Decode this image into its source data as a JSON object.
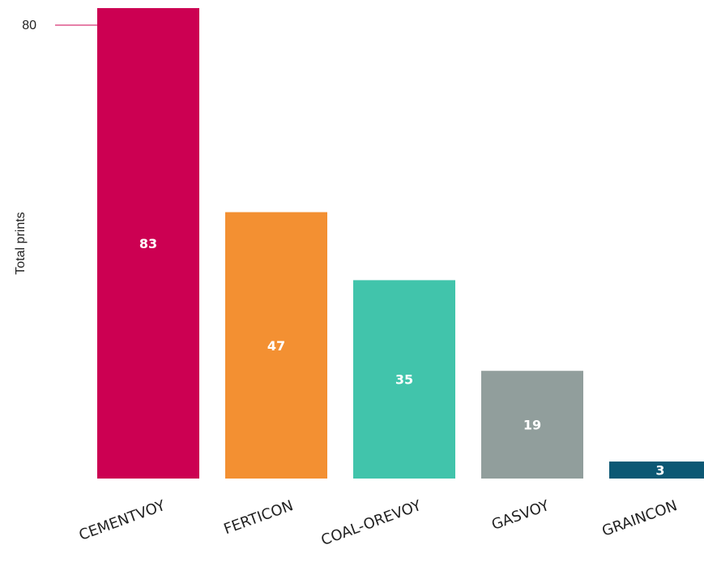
{
  "chart_data": {
    "type": "bar",
    "categories": [
      "CEMENTVOY",
      "FERTICON",
      "COAL-OREVOY",
      "GASVOY",
      "GRAINCON"
    ],
    "values": [
      83,
      47,
      35,
      19,
      3
    ],
    "colors": [
      "#cc0052",
      "#f39032",
      "#41c4ab",
      "#919e9c",
      "#0c5874"
    ],
    "xlabel": "",
    "ylabel": "Total prints",
    "yticks": [
      80
    ],
    "ylim": [
      0,
      83
    ],
    "grid": false,
    "legend": "none"
  }
}
